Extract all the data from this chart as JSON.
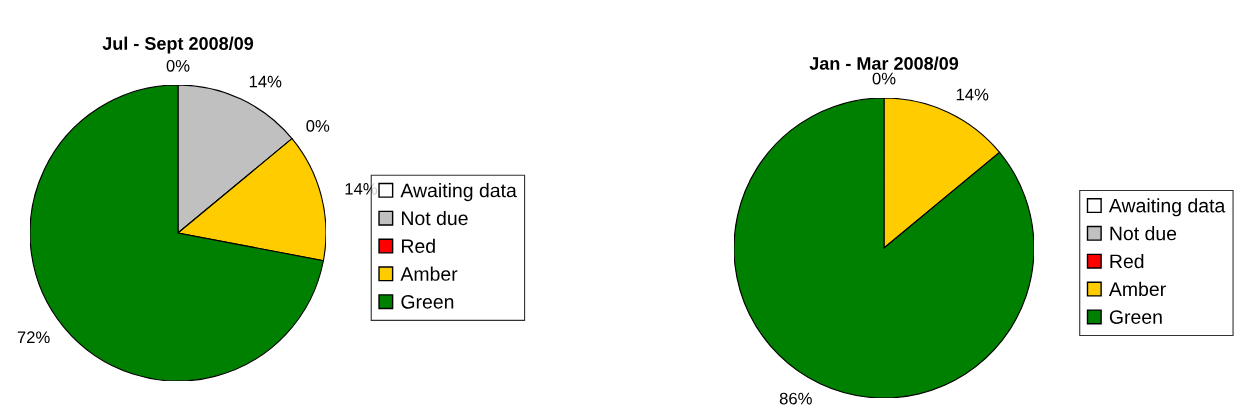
{
  "chart_data": [
    {
      "type": "pie",
      "title": "Jul - Sept 2008/09",
      "categories": [
        "Awaiting data",
        "Not due",
        "Red",
        "Amber",
        "Green"
      ],
      "values": [
        0,
        14,
        0,
        14,
        72
      ],
      "colors": [
        "#ffffff",
        "#c0c0c0",
        "#ff0000",
        "#ffcc00",
        "#008000"
      ],
      "value_labels": [
        "0%",
        "14%",
        "0%",
        "14%",
        "72%"
      ],
      "legend": "right"
    },
    {
      "type": "pie",
      "title": "Jan - Mar 2008/09",
      "categories": [
        "Awaiting data",
        "Not due",
        "Red",
        "Amber",
        "Green"
      ],
      "values": [
        0,
        0,
        0,
        14,
        86
      ],
      "colors": [
        "#ffffff",
        "#c0c0c0",
        "#ff0000",
        "#ffcc00",
        "#008000"
      ],
      "value_labels": [
        "0%",
        null,
        null,
        "14%",
        "86%"
      ],
      "legend": "right"
    }
  ]
}
